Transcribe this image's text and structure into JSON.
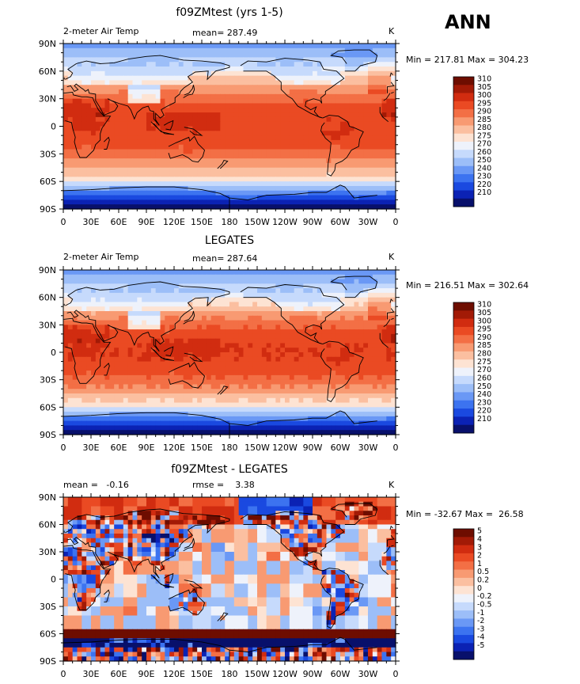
{
  "figure": {
    "season": "ANN"
  },
  "colors": {
    "abs": [
      "#08106b",
      "#0b22b4",
      "#1a49e0",
      "#3c73f0",
      "#6a98f5",
      "#9cbef8",
      "#c6dafc",
      "#eef2fb",
      "#fde3d3",
      "#fbbfa0",
      "#f89a72",
      "#f36f45",
      "#ea4a23",
      "#d12c10",
      "#a21a06",
      "#6e0d00"
    ],
    "diff": [
      "#08106b",
      "#0b22b4",
      "#1a49e0",
      "#3c73f0",
      "#6a98f5",
      "#9cbef8",
      "#c6dafc",
      "#eef2fb",
      "#fde3d3",
      "#fbbfa0",
      "#f89a72",
      "#f36f45",
      "#ea4a23",
      "#d12c10",
      "#a21a06",
      "#6e0d00"
    ]
  },
  "chart_data": [
    {
      "type": "heatmap",
      "title": "f09ZMtest (yrs 1-5)",
      "left_label": "2-meter Air Temp",
      "mean_text": "mean= 287.49",
      "units": "K",
      "minmax_text": "Min = 217.81 Max = 304.23",
      "field": "abs",
      "levels": [
        "310",
        "305",
        "300",
        "295",
        "290",
        "285",
        "280",
        "275",
        "270",
        "260",
        "250",
        "240",
        "230",
        "220",
        "210"
      ],
      "x_ticks": [
        "0",
        "30E",
        "60E",
        "90E",
        "120E",
        "150E",
        "180",
        "150W",
        "120W",
        "90W",
        "60W",
        "30W",
        "0"
      ],
      "y_ticks": [
        "90N",
        "60N",
        "30N",
        "0",
        "30S",
        "60S",
        "90S"
      ]
    },
    {
      "type": "heatmap",
      "title": "LEGATES",
      "left_label": "2-meter Air Temp",
      "mean_text": "mean= 287.64",
      "units": "K",
      "minmax_text": "Min = 216.51 Max = 302.64",
      "field": "abs",
      "levels": [
        "310",
        "305",
        "300",
        "295",
        "290",
        "285",
        "280",
        "275",
        "270",
        "260",
        "250",
        "240",
        "230",
        "220",
        "210"
      ],
      "x_ticks": [
        "0",
        "30E",
        "60E",
        "90E",
        "120E",
        "150E",
        "180",
        "150W",
        "120W",
        "90W",
        "60W",
        "30W",
        "0"
      ],
      "y_ticks": [
        "90N",
        "60N",
        "30N",
        "0",
        "30S",
        "60S",
        "90S"
      ]
    },
    {
      "type": "heatmap",
      "title": "f09ZMtest - LEGATES",
      "left_label": "mean =   -0.16",
      "mean_text": "rmse =    3.38",
      "units": "K",
      "minmax_text": "Min = -32.67 Max =  26.58",
      "field": "diff",
      "levels": [
        "5",
        "4",
        "3",
        "2",
        "1",
        "0.5",
        "0.2",
        "0",
        "-0.2",
        "-0.5",
        "-1",
        "-2",
        "-3",
        "-4",
        "-5"
      ],
      "x_ticks": [
        "0",
        "30E",
        "60E",
        "90E",
        "120E",
        "150E",
        "180",
        "150W",
        "120W",
        "90W",
        "60W",
        "30W",
        "0"
      ],
      "y_ticks": [
        "90N",
        "60N",
        "30N",
        "0",
        "30S",
        "60S",
        "90S"
      ]
    }
  ]
}
